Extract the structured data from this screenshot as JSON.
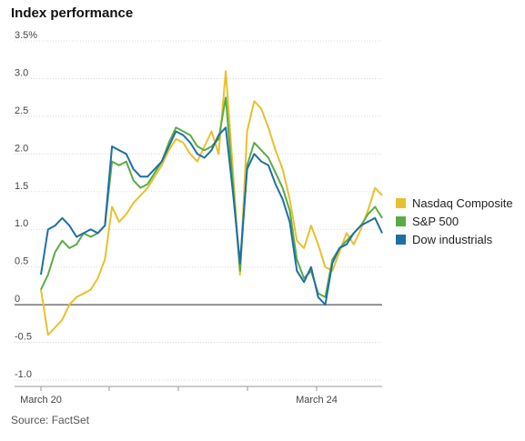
{
  "chart_data": {
    "type": "line",
    "title": "Index performance",
    "source": "Source: FactSet",
    "y_ticks": [
      "3.5%",
      "3.0",
      "2.5",
      "2.0",
      "1.5",
      "1.0",
      "0.5",
      "0",
      "-0.5",
      "-1.0"
    ],
    "x_ticks": [
      "March 20",
      "March 24"
    ],
    "ylim": [
      -1.0,
      3.5
    ],
    "grid": true,
    "legend_position": "right",
    "x": [
      0,
      0.5,
      1,
      1.5,
      2,
      2.5,
      3,
      3.5,
      4,
      4.5,
      5,
      5.5,
      6,
      6.5,
      7,
      7.5,
      8,
      8.5,
      9,
      9.5,
      10,
      10.5,
      11,
      11.5,
      12,
      12.5,
      13,
      13.5,
      14,
      14.5,
      15,
      15.5,
      16,
      16.5,
      17,
      17.5,
      18,
      18.5,
      19,
      19.5,
      20,
      20.5,
      21,
      21.5,
      22,
      22.5,
      23,
      23.5,
      24
    ],
    "series": [
      {
        "name": "Nasdaq Composite",
        "color": "#e8c02e",
        "values": [
          0.2,
          -0.4,
          -0.3,
          -0.2,
          0.0,
          0.1,
          0.15,
          0.2,
          0.35,
          0.6,
          1.3,
          1.1,
          1.2,
          1.35,
          1.45,
          1.55,
          1.7,
          1.85,
          2.05,
          2.2,
          2.15,
          2.0,
          1.9,
          2.1,
          2.3,
          2.0,
          3.1,
          1.8,
          0.4,
          2.3,
          2.7,
          2.6,
          2.35,
          2.05,
          1.8,
          1.4,
          0.85,
          0.75,
          1.05,
          0.8,
          0.5,
          0.45,
          0.7,
          0.95,
          0.8,
          1.0,
          1.25,
          1.55,
          1.45
        ]
      },
      {
        "name": "S&P 500",
        "color": "#5aab46",
        "values": [
          0.2,
          0.4,
          0.7,
          0.85,
          0.75,
          0.8,
          0.95,
          0.9,
          0.95,
          1.05,
          1.9,
          1.85,
          1.9,
          1.65,
          1.55,
          1.6,
          1.75,
          1.9,
          2.15,
          2.35,
          2.3,
          2.25,
          2.1,
          2.05,
          2.1,
          2.2,
          2.75,
          1.6,
          0.45,
          1.85,
          2.15,
          2.05,
          1.95,
          1.75,
          1.55,
          1.25,
          0.6,
          0.35,
          0.45,
          0.15,
          0.1,
          0.6,
          0.75,
          0.85,
          0.95,
          1.05,
          1.2,
          1.3,
          1.15
        ]
      },
      {
        "name": "Dow industrials",
        "color": "#1f6fa5",
        "values": [
          0.4,
          1.0,
          1.05,
          1.15,
          1.05,
          0.9,
          0.95,
          1.0,
          0.95,
          1.05,
          2.1,
          2.05,
          2.0,
          1.8,
          1.7,
          1.7,
          1.8,
          1.9,
          2.1,
          2.3,
          2.25,
          2.15,
          2.0,
          1.95,
          2.05,
          2.25,
          2.35,
          1.5,
          0.55,
          1.8,
          2.0,
          1.9,
          1.85,
          1.6,
          1.4,
          1.1,
          0.45,
          0.3,
          0.5,
          0.1,
          0.0,
          0.55,
          0.75,
          0.8,
          0.95,
          1.05,
          1.1,
          1.15,
          0.95
        ]
      }
    ]
  }
}
